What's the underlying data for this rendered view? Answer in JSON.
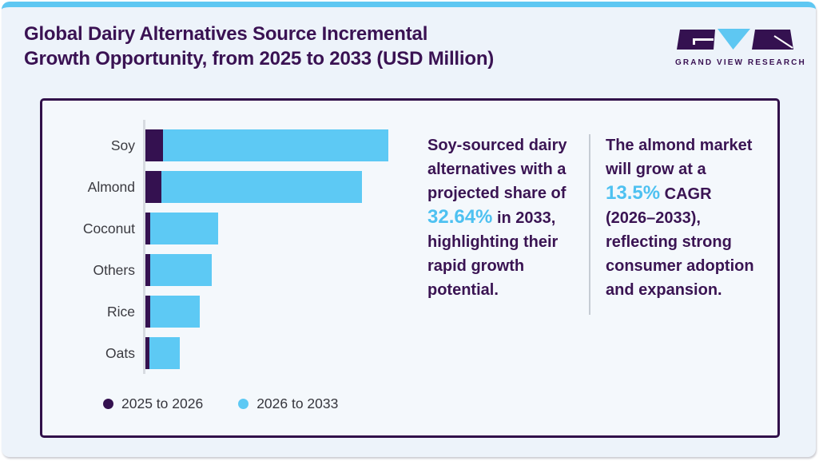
{
  "header": {
    "title_line1": "Global Dairy Alternatives Source Incremental",
    "title_line2": "Growth Opportunity, from 2025 to 2033 (USD Million)",
    "brand_name": "GRAND VIEW RESEARCH"
  },
  "colors": {
    "title_purple": "#3a1253",
    "bar_purple": "#341150",
    "bar_blue": "#5dc9f4",
    "highlight_blue": "#4ec1f1",
    "top_strip_blue": "#5ec7f2",
    "panel_bg": "#edf3fa",
    "card_bg": "#f4f8fc",
    "card_border": "#31104a"
  },
  "chart_data": {
    "type": "bar",
    "orientation": "horizontal",
    "stacked": true,
    "title": "Global Dairy Alternatives Source Incremental Growth Opportunity, from 2025 to 2033 (USD Million)",
    "categories": [
      "Soy",
      "Almond",
      "Coconut",
      "Others",
      "Rice",
      "Oats"
    ],
    "series": [
      {
        "name": "2025 to 2026",
        "color": "#341150",
        "values": [
          22,
          20,
          6,
          6,
          6,
          5
        ]
      },
      {
        "name": "2026 to 2033",
        "color": "#5dc9f4",
        "values": [
          282,
          251,
          85,
          77,
          62,
          38
        ]
      }
    ],
    "value_axis": "hidden — no tick labels shown; values are relative bar lengths",
    "grid": false,
    "legend_position": "bottom"
  },
  "insights": {
    "soy": {
      "text_before": "Soy-sourced dairy alternatives with a projected share of ",
      "highlight": "32.64%",
      "text_after": " in 2033, highlighting their rapid growth potential."
    },
    "almond": {
      "text_before": "The almond market will grow at a ",
      "highlight": "13.5%",
      "text_after": " CAGR (2026–2033), reflecting strong consumer adoption and expansion."
    }
  }
}
